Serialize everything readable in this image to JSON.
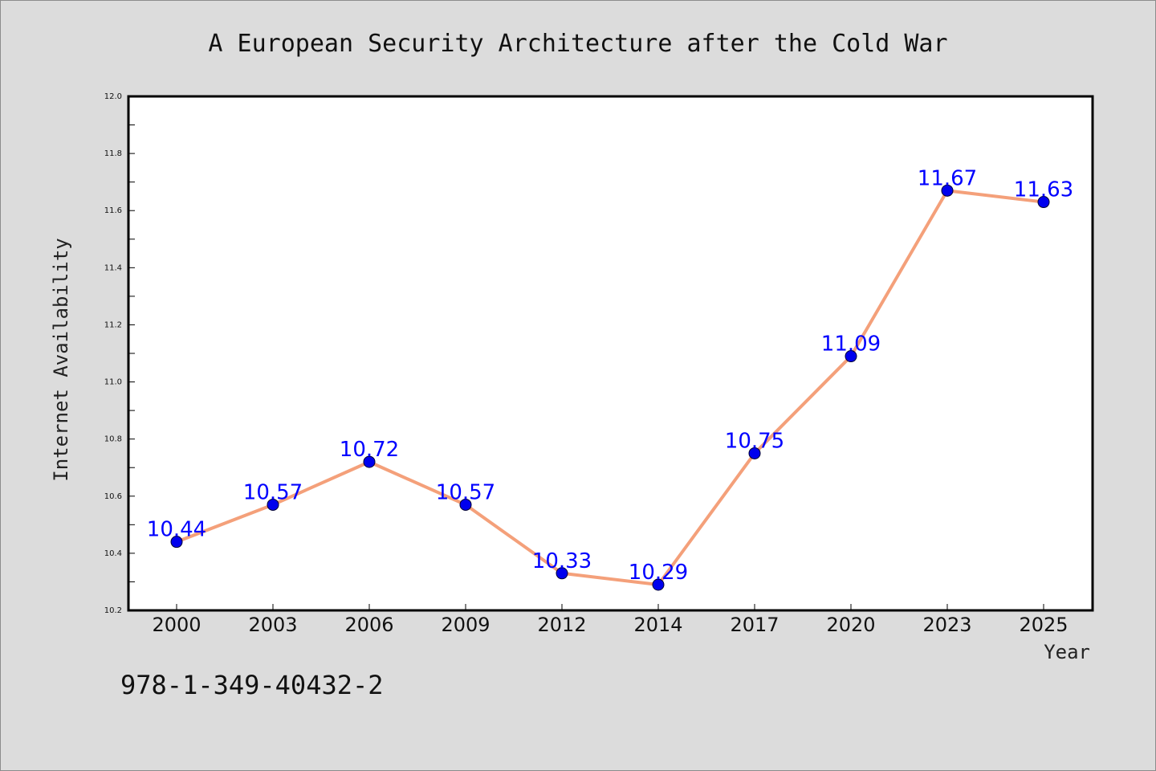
{
  "chart_data": {
    "type": "line",
    "title": "A European Security Architecture after the Cold War",
    "xlabel": "Year",
    "ylabel": "Internet Availability",
    "categories": [
      "2000",
      "2003",
      "2006",
      "2009",
      "2012",
      "2014",
      "2017",
      "2020",
      "2023",
      "2025"
    ],
    "values": [
      10.44,
      10.57,
      10.72,
      10.57,
      10.33,
      10.29,
      10.75,
      11.09,
      11.67,
      11.63
    ],
    "ylim": [
      10.2,
      12.0
    ],
    "yticks": [
      "10.2",
      "10.4",
      "10.6",
      "10.8",
      "11.0",
      "11.2",
      "11.4",
      "11.6",
      "11.8",
      "12.0"
    ],
    "grid": false,
    "legend": "none",
    "data_labels": true,
    "line_color": "#f4a07a",
    "marker_color": "#0000ee",
    "label_color": "#0000ff"
  },
  "footer": {
    "isbn": "978-1-349-40432-2"
  }
}
